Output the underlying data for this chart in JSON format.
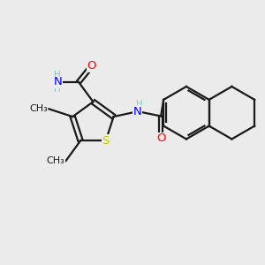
{
  "background_color": "#ebebeb",
  "bond_color": "#1a1a1a",
  "bond_width": 1.6,
  "atom_colors": {
    "C": "#1a1a1a",
    "H": "#7ec8c8",
    "N": "#0000ff",
    "O": "#ff0000",
    "S": "#cccc00"
  },
  "font_size": 8.5,
  "figsize": [
    3.0,
    3.0
  ],
  "dpi": 100,
  "xlim": [
    0,
    10
  ],
  "ylim": [
    0,
    10
  ]
}
